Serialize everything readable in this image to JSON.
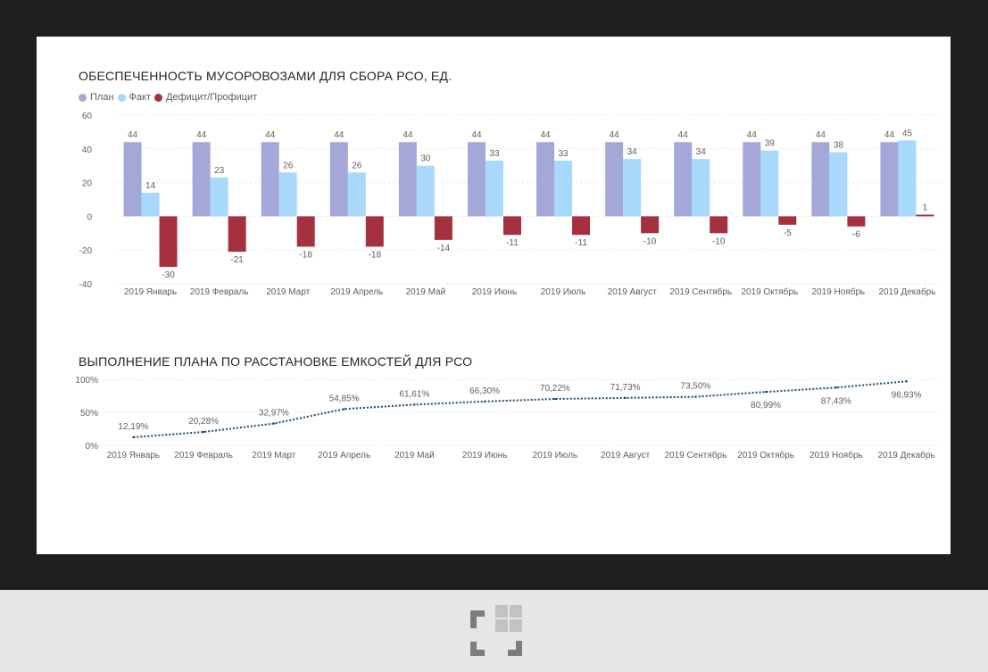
{
  "colors": {
    "plan": "#a3a8d9",
    "fact": "#a8d8fb",
    "deficit": "#a4313d",
    "line": "#1e4a6e",
    "text": "#605e5c",
    "grid": "#e6e6e6"
  },
  "chart_data": [
    {
      "type": "bar",
      "title": "ОБЕСПЕЧЕННОСТЬ МУСОРОВОЗАМИ ДЛЯ СБОРА РСО, ЕД.",
      "legend_position": "top-left",
      "categories": [
        "2019 Январь",
        "2019 Февраль",
        "2019 Март",
        "2019 Апрель",
        "2019 Май",
        "2019 Июнь",
        "2019 Июль",
        "2019 Август",
        "2019 Сентябрь",
        "2019 Октябрь",
        "2019 Ноябрь",
        "2019 Декабрь"
      ],
      "series": [
        {
          "name": "План",
          "color_key": "plan",
          "values": [
            44,
            44,
            44,
            44,
            44,
            44,
            44,
            44,
            44,
            44,
            44,
            44
          ]
        },
        {
          "name": "Факт",
          "color_key": "fact",
          "values": [
            14,
            23,
            26,
            26,
            30,
            33,
            33,
            34,
            34,
            39,
            38,
            45
          ]
        },
        {
          "name": "Дефицит/Профицит",
          "color_key": "deficit",
          "values": [
            -30,
            -21,
            -18,
            -18,
            -14,
            -11,
            -11,
            -10,
            -10,
            -5,
            -6,
            1
          ]
        }
      ],
      "ylim": [
        -40,
        60
      ],
      "yticks": [
        60,
        40,
        20,
        0,
        -20,
        -40
      ],
      "grid": true
    },
    {
      "type": "line",
      "title": "ВЫПОЛНЕНИЕ ПЛАНА ПО РАССТАНОВКЕ ЕМКОСТЕЙ ДЛЯ РСО",
      "categories": [
        "2019 Январь",
        "2019 Февраль",
        "2019 Март",
        "2019 Апрель",
        "2019 Май",
        "2019 Июнь",
        "2019 Июль",
        "2019 Август",
        "2019 Сентябрь",
        "2019 Октябрь",
        "2019 Ноябрь",
        "2019 Декабрь"
      ],
      "values": [
        12.19,
        20.28,
        32.97,
        54.85,
        61.61,
        66.3,
        70.22,
        71.73,
        73.5,
        80.99,
        87.43,
        96.93
      ],
      "labels": [
        "12,19%",
        "20,28%",
        "32,97%",
        "54,85%",
        "61,61%",
        "66,30%",
        "70,22%",
        "71,73%",
        "73,50%",
        "80,99%",
        "87,43%",
        "96,93%"
      ],
      "label_positions": [
        "above",
        "above",
        "above",
        "above",
        "above",
        "above",
        "above",
        "above",
        "above",
        "below",
        "below",
        "below"
      ],
      "ylim": [
        0,
        100
      ],
      "yticks": [
        100,
        50,
        0
      ],
      "ytick_labels": [
        "100%",
        "50%",
        "0%"
      ],
      "line_style": "dotted",
      "grid": true
    }
  ]
}
